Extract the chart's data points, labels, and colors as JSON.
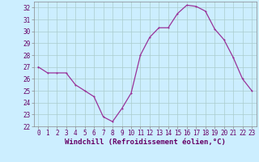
{
  "x": [
    0,
    1,
    2,
    3,
    4,
    5,
    6,
    7,
    8,
    9,
    10,
    11,
    12,
    13,
    14,
    15,
    16,
    17,
    18,
    19,
    20,
    21,
    22,
    23
  ],
  "y": [
    27,
    26.5,
    26.5,
    26.5,
    25.5,
    25,
    24.5,
    22.8,
    22.4,
    23.5,
    24.8,
    28,
    29.5,
    30.3,
    30.3,
    31.5,
    32.2,
    32.1,
    31.7,
    30.2,
    29.3,
    27.8,
    26.0,
    25.0
  ],
  "line_color": "#993399",
  "markersize": 2.0,
  "linewidth": 0.9,
  "bg_color": "#cceeff",
  "grid_color": "#aacccc",
  "xlabel": "Windchill (Refroidissement éolien,°C)",
  "xlabel_fontsize": 6.5,
  "tick_fontsize": 5.5,
  "ylim": [
    22,
    32.5
  ],
  "xlim": [
    -0.5,
    23.5
  ],
  "yticks": [
    22,
    23,
    24,
    25,
    26,
    27,
    28,
    29,
    30,
    31,
    32
  ],
  "xticks": [
    0,
    1,
    2,
    3,
    4,
    5,
    6,
    7,
    8,
    9,
    10,
    11,
    12,
    13,
    14,
    15,
    16,
    17,
    18,
    19,
    20,
    21,
    22,
    23
  ]
}
